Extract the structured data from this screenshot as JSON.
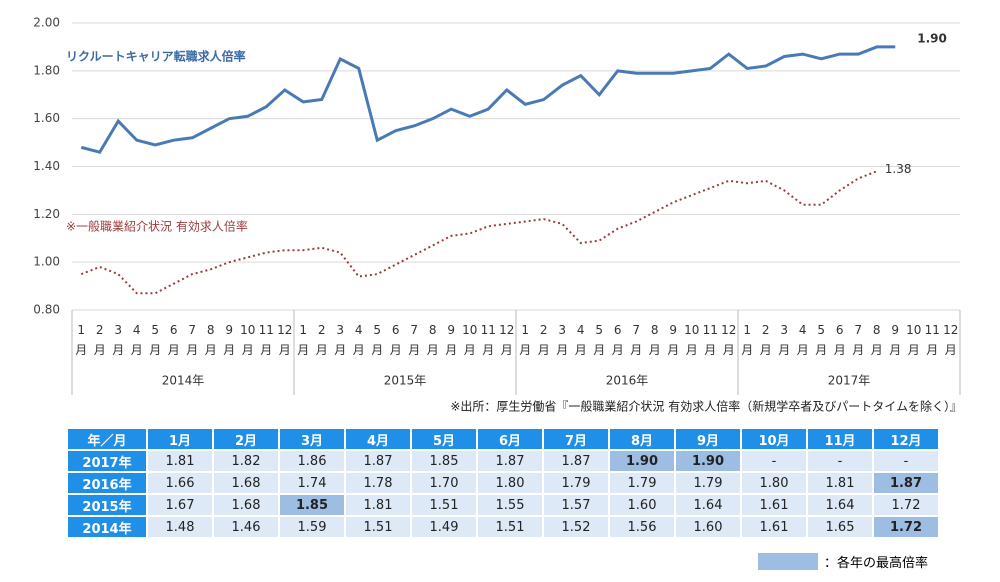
{
  "chart_data": {
    "type": "line",
    "categories": [
      "1月",
      "2月",
      "3月",
      "4月",
      "5月",
      "6月",
      "7月",
      "8月",
      "9月",
      "10月",
      "11月",
      "12月",
      "1月",
      "2月",
      "3月",
      "4月",
      "5月",
      "6月",
      "7月",
      "8月",
      "9月",
      "10月",
      "11月",
      "12月",
      "1月",
      "2月",
      "3月",
      "4月",
      "5月",
      "6月",
      "7月",
      "8月",
      "9月",
      "10月",
      "11月",
      "12月",
      "1月",
      "2月",
      "3月",
      "4月",
      "5月",
      "6月",
      "7月",
      "8月",
      "9月",
      "10月",
      "11月",
      "12月"
    ],
    "groups": [
      "2014年",
      "2015年",
      "2016年",
      "2017年"
    ],
    "series": [
      {
        "name": "リクルートキャリア転職求人倍率",
        "color": "#4a7ab5",
        "style": "solid",
        "values": [
          1.48,
          1.46,
          1.59,
          1.51,
          1.49,
          1.51,
          1.52,
          1.56,
          1.6,
          1.61,
          1.65,
          1.72,
          1.67,
          1.68,
          1.85,
          1.81,
          1.51,
          1.55,
          1.57,
          1.6,
          1.64,
          1.61,
          1.64,
          1.72,
          1.66,
          1.68,
          1.74,
          1.78,
          1.7,
          1.8,
          1.79,
          1.79,
          1.79,
          1.8,
          1.81,
          1.87,
          1.81,
          1.82,
          1.86,
          1.87,
          1.85,
          1.87,
          1.87,
          1.9,
          1.9,
          null,
          null,
          null
        ],
        "value_labels": [
          null,
          null,
          null,
          null,
          null,
          null,
          null,
          null,
          null,
          null,
          null,
          null,
          null,
          null,
          null,
          null,
          null,
          null,
          null,
          null,
          null,
          null,
          null,
          null,
          null,
          null,
          null,
          null,
          null,
          null,
          null,
          null,
          null,
          null,
          null,
          null,
          null,
          null,
          null,
          null,
          null,
          null,
          null,
          null,
          "1.90",
          null,
          null,
          null
        ]
      },
      {
        "name": "※一般職業紹介状況 有効求人倍率",
        "color": "#9b3b3b",
        "style": "dotted",
        "values": [
          0.95,
          0.98,
          0.95,
          0.87,
          0.87,
          0.91,
          0.95,
          0.97,
          1.0,
          1.02,
          1.04,
          1.05,
          1.05,
          1.06,
          1.04,
          0.94,
          0.95,
          0.99,
          1.03,
          1.07,
          1.11,
          1.12,
          1.15,
          1.16,
          1.17,
          1.18,
          1.16,
          1.08,
          1.09,
          1.14,
          1.17,
          1.21,
          1.25,
          1.28,
          1.31,
          1.34,
          1.33,
          1.34,
          1.3,
          1.24,
          1.24,
          1.3,
          1.35,
          1.38,
          null,
          null,
          null,
          null
        ],
        "value_labels": [
          null,
          null,
          null,
          null,
          null,
          null,
          null,
          null,
          null,
          null,
          null,
          null,
          null,
          null,
          null,
          null,
          null,
          null,
          null,
          null,
          null,
          null,
          null,
          null,
          null,
          null,
          null,
          null,
          null,
          null,
          null,
          null,
          null,
          null,
          null,
          null,
          null,
          null,
          null,
          null,
          null,
          null,
          null,
          "1.38",
          null,
          null,
          null,
          null
        ]
      }
    ],
    "ylim": [
      0.8,
      2.0
    ],
    "yticks": [
      {
        "value": 0.8,
        "label": "0.80"
      },
      {
        "value": 1.0,
        "label": "1.00"
      },
      {
        "value": 1.2,
        "label": "1.20"
      },
      {
        "value": 1.4,
        "label": "1.40"
      },
      {
        "value": 1.6,
        "label": "1.60"
      },
      {
        "value": 1.8,
        "label": "1.80"
      },
      {
        "value": 2.0,
        "label": "2.00"
      }
    ],
    "grid": true,
    "source": "※出所：厚生労働省『一般職業紹介状況 有効求人倍率（新規学卒者及びパートタイムを除く）』"
  },
  "table": {
    "header": [
      "年／月",
      "1月",
      "2月",
      "3月",
      "4月",
      "5月",
      "6月",
      "7月",
      "8月",
      "9月",
      "10月",
      "11月",
      "12月"
    ],
    "rows": [
      [
        "2017年",
        "1.81",
        "1.82",
        "1.86",
        "1.87",
        "1.85",
        "1.87",
        "1.87",
        "1.90",
        "1.90",
        "-",
        "-",
        "-"
      ],
      [
        "2016年",
        "1.66",
        "1.68",
        "1.74",
        "1.78",
        "1.70",
        "1.80",
        "1.79",
        "1.79",
        "1.79",
        "1.80",
        "1.81",
        "1.87"
      ],
      [
        "2015年",
        "1.67",
        "1.68",
        "1.85",
        "1.81",
        "1.51",
        "1.55",
        "1.57",
        "1.60",
        "1.64",
        "1.61",
        "1.64",
        "1.72"
      ],
      [
        "2014年",
        "1.48",
        "1.46",
        "1.59",
        "1.51",
        "1.49",
        "1.51",
        "1.52",
        "1.56",
        "1.60",
        "1.61",
        "1.65",
        "1.72"
      ]
    ],
    "highlight": [
      [
        8,
        9
      ],
      [
        12
      ],
      [
        3
      ],
      [
        12
      ]
    ],
    "legend": "：各年の最高倍率"
  }
}
